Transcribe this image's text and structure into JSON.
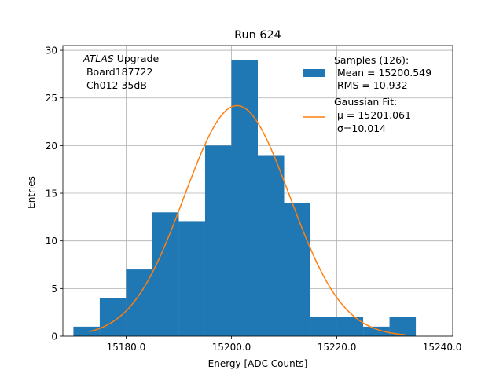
{
  "chart_data": {
    "type": "bar",
    "title": "Run 624",
    "xlabel": "Energy [ADC Counts]",
    "ylabel": "Entries",
    "xlim": [
      15168.0,
      15242.0
    ],
    "ylim": [
      0,
      30.5
    ],
    "grid": true,
    "xticks": [
      15180.0,
      15200.0,
      15220.0,
      15240.0
    ],
    "xtick_labels": [
      "15180.0",
      "15200.0",
      "15220.0",
      "15240.0"
    ],
    "yticks": [
      0,
      5,
      10,
      15,
      20,
      25,
      30
    ],
    "ytick_labels": [
      "0",
      "5",
      "10",
      "15",
      "20",
      "25",
      "30"
    ],
    "bin_edges": [
      15170.0,
      15175.0,
      15180.0,
      15185.0,
      15190.0,
      15195.0,
      15200.0,
      15205.0,
      15210.0,
      15215.0,
      15220.0,
      15225.0,
      15230.0,
      15235.0
    ],
    "counts": [
      1,
      4,
      7,
      13,
      12,
      20,
      29,
      19,
      14,
      2,
      2,
      1,
      2
    ],
    "bar_color": "#1f77b4",
    "fit": {
      "type": "gaussian",
      "mu": 15201.061,
      "sigma": 10.014,
      "amplitude": 24.2,
      "x_range": [
        15173.0,
        15233.0
      ],
      "color": "#ff7f0e"
    },
    "legend": {
      "position": "top-right",
      "samples_lines": [
        "Samples (126):",
        " Mean = 15200.549",
        " RMS = 10.932"
      ],
      "fit_lines": [
        "Gaussian Fit:",
        " μ = 15201.061",
        " σ=10.014"
      ]
    },
    "annotation": {
      "atlas_italic": "ATLAS",
      "atlas_rest": " Upgrade",
      "line2": " Board187722",
      "line3": " Ch012 35dB"
    }
  }
}
